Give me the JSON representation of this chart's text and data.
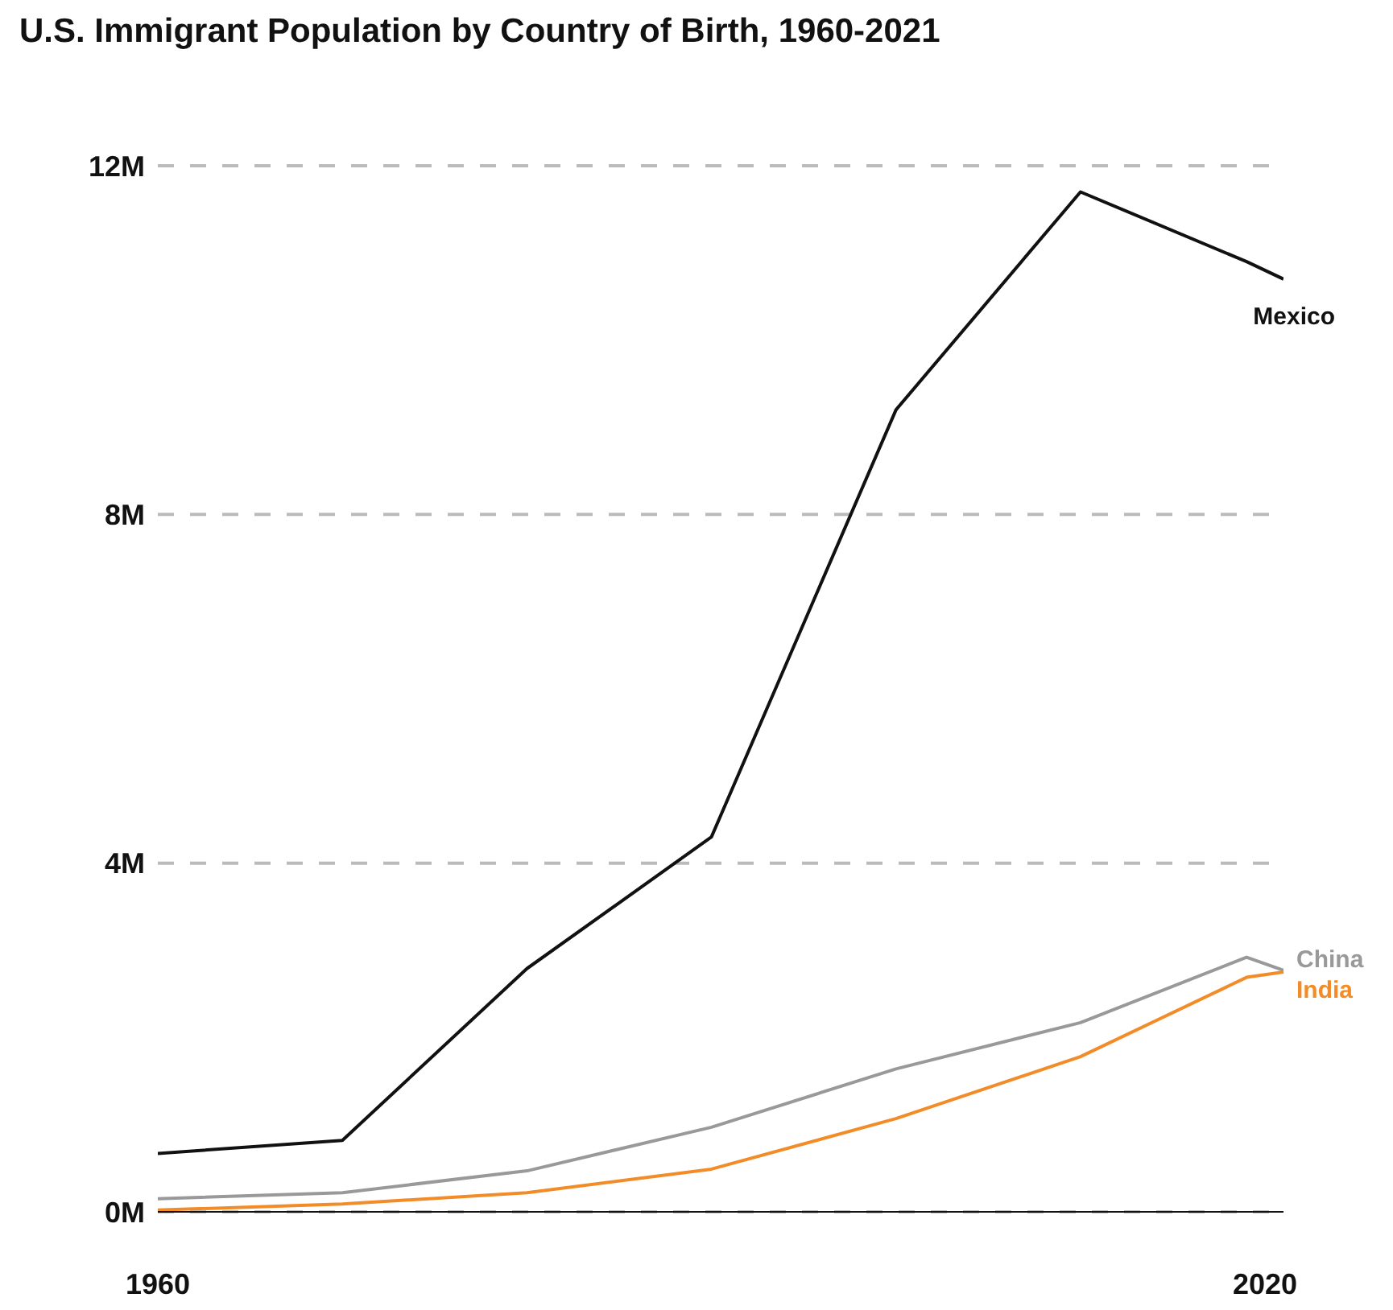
{
  "chart_data": {
    "type": "line",
    "title": "U.S. Immigrant Population by Country of Birth, 1960-2021",
    "x": [
      1960,
      1970,
      1980,
      1990,
      2000,
      2010,
      2019,
      2021
    ],
    "series": [
      {
        "name": "Mexico",
        "color": "#111111",
        "values": [
          0.67,
          0.82,
          2.79,
          4.3,
          9.2,
          11.7,
          10.9,
          10.7
        ]
      },
      {
        "name": "China",
        "color": "#999999",
        "values": [
          0.15,
          0.22,
          0.47,
          0.97,
          1.64,
          2.17,
          2.92,
          2.77
        ]
      },
      {
        "name": "India",
        "color": "#f28c28",
        "values": [
          0.02,
          0.09,
          0.22,
          0.49,
          1.07,
          1.78,
          2.69,
          2.75
        ]
      }
    ],
    "xlim": [
      1960,
      2021
    ],
    "xticks": [
      1960,
      2020
    ],
    "ylim": [
      0,
      12
    ],
    "yticks": [
      {
        "value": 0,
        "label": "0M"
      },
      {
        "value": 4,
        "label": "4M"
      },
      {
        "value": 8,
        "label": "8M"
      },
      {
        "value": 12,
        "label": "12M"
      }
    ],
    "grid": "y",
    "legend": false,
    "marker": "none",
    "line_style": "solid"
  }
}
